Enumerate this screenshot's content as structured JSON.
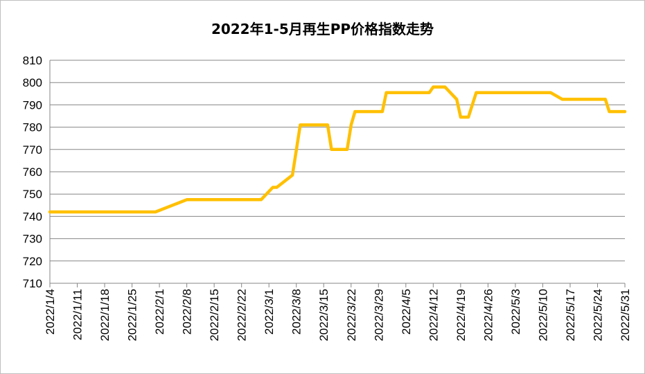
{
  "chart_data": {
    "type": "line",
    "title": "2022年1-5月再生PP价格指数走势",
    "xlabel": "",
    "ylabel": "",
    "ylim": [
      710,
      810
    ],
    "yticks": [
      710,
      720,
      730,
      740,
      750,
      760,
      770,
      780,
      790,
      800,
      810
    ],
    "grid": true,
    "line_color": "#FFC000",
    "x_ticklabels": [
      "2022/1/4",
      "2022/1/11",
      "2022/1/18",
      "2022/1/25",
      "2022/2/1",
      "2022/2/8",
      "2022/2/15",
      "2022/2/22",
      "2022/3/1",
      "2022/3/8",
      "2022/3/15",
      "2022/3/22",
      "2022/3/29",
      "2022/4/5",
      "2022/4/12",
      "2022/4/19",
      "2022/4/26",
      "2022/5/3",
      "2022/5/10",
      "2022/5/17",
      "2022/5/24",
      "2022/5/31"
    ],
    "series": [
      {
        "x": [
          "2022/1/4",
          "2022/1/31",
          "2022/2/8",
          "2022/2/27",
          "2022/3/2",
          "2022/3/3",
          "2022/3/7",
          "2022/3/9",
          "2022/3/16",
          "2022/3/17",
          "2022/3/21",
          "2022/3/22",
          "2022/3/23",
          "2022/3/30",
          "2022/3/31",
          "2022/4/11",
          "2022/4/12",
          "2022/4/15",
          "2022/4/18",
          "2022/4/19",
          "2022/4/21",
          "2022/4/23",
          "2022/5/12",
          "2022/5/15",
          "2022/5/26",
          "2022/5/27",
          "2022/5/31"
        ],
        "values": [
          742,
          742,
          747.5,
          747.5,
          753,
          753,
          758.5,
          781,
          781,
          770,
          770,
          781,
          787,
          787,
          795.5,
          795.5,
          798,
          798,
          792.5,
          784.5,
          784.5,
          795.5,
          795.5,
          792.5,
          792.5,
          787,
          787
        ]
      }
    ]
  }
}
